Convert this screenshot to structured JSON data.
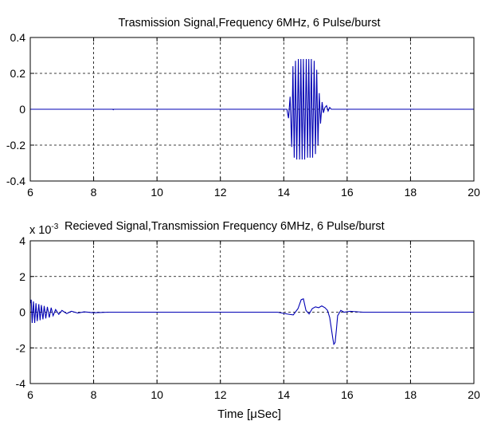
{
  "chart_data": [
    {
      "type": "line",
      "title": "Trasmission Signal,Frequency 6MHz, 6 Pulse/burst",
      "xlabel": "",
      "ylabel": "",
      "xlim": [
        6,
        20
      ],
      "ylim": [
        -0.4,
        0.4
      ],
      "xticks": [
        "6",
        "8",
        "10",
        "12",
        "14",
        "16",
        "18",
        "20"
      ],
      "yticks": [
        "0.4",
        "0.2",
        "0",
        "-0.2",
        "-0.4"
      ],
      "grid": true,
      "color": "#0000b4",
      "series": [
        {
          "x": [
            6.0,
            8.6,
            8.62,
            8.64,
            14.0,
            14.1,
            14.15,
            14.2,
            14.25,
            14.29,
            14.33,
            14.37,
            14.41,
            14.46,
            14.5,
            14.54,
            14.58,
            14.62,
            14.66,
            14.71,
            14.75,
            14.79,
            14.83,
            14.87,
            14.91,
            14.96,
            15.0,
            15.04,
            15.08,
            15.12,
            15.16,
            15.21,
            15.25,
            15.3,
            15.35,
            15.4,
            15.45,
            15.5,
            15.6,
            20.0
          ],
          "y": [
            0.0,
            0.0,
            -0.003,
            0.0,
            0.0,
            0.0,
            -0.05,
            0.07,
            -0.21,
            0.24,
            -0.27,
            0.27,
            -0.28,
            0.28,
            -0.28,
            0.28,
            -0.28,
            0.28,
            -0.28,
            0.28,
            -0.27,
            0.28,
            -0.27,
            0.28,
            -0.27,
            0.27,
            -0.25,
            0.22,
            -0.2,
            0.09,
            -0.08,
            0.04,
            -0.02,
            0.01,
            0.02,
            -0.01,
            0.01,
            0.0,
            0.0,
            0.0
          ]
        }
      ]
    },
    {
      "type": "line",
      "title": "Recieved Signal,Transmission Frequency 6MHz, 6 Pulse/burst",
      "scale_label": "x 10",
      "scale_exp": "-3",
      "xlabel": "Time [μSec]",
      "ylabel": "",
      "xlim": [
        6,
        20
      ],
      "ylim": [
        -4,
        4
      ],
      "xticks": [
        "6",
        "8",
        "10",
        "12",
        "14",
        "16",
        "18",
        "20"
      ],
      "yticks": [
        "4",
        "2",
        "0",
        "-2",
        "-4"
      ],
      "grid": true,
      "color": "#0000b4",
      "series": [
        {
          "x": [
            6.0,
            6.03,
            6.06,
            6.1,
            6.14,
            6.18,
            6.22,
            6.27,
            6.31,
            6.35,
            6.4,
            6.44,
            6.49,
            6.54,
            6.6,
            6.66,
            6.72,
            6.8,
            6.9,
            7.0,
            7.15,
            7.3,
            7.5,
            7.7,
            8.0,
            8.5,
            9.0,
            10.0,
            11.0,
            12.0,
            13.0,
            13.8,
            14.1,
            14.3,
            14.45,
            14.55,
            14.62,
            14.7,
            14.8,
            14.9,
            15.0,
            15.1,
            15.2,
            15.3,
            15.38,
            15.45,
            15.5,
            15.55,
            15.58,
            15.62,
            15.66,
            15.7,
            15.8,
            15.9,
            16.1,
            16.5,
            17.0,
            18.0,
            19.0,
            20.0
          ],
          "y": [
            0.5,
            0.7,
            -0.6,
            0.6,
            -0.6,
            0.5,
            -0.5,
            0.45,
            -0.45,
            0.4,
            -0.4,
            0.35,
            -0.35,
            0.3,
            -0.3,
            0.25,
            -0.2,
            0.15,
            -0.12,
            0.1,
            -0.08,
            0.05,
            -0.05,
            0.02,
            -0.03,
            0.0,
            0.0,
            0.0,
            0.0,
            0.0,
            0.0,
            0.0,
            -0.1,
            -0.15,
            0.2,
            0.7,
            0.75,
            0.1,
            -0.1,
            0.2,
            0.3,
            0.25,
            0.35,
            0.25,
            0.1,
            -0.3,
            -0.9,
            -1.5,
            -1.8,
            -1.7,
            -1.0,
            -0.2,
            0.1,
            0.0,
            0.05,
            0.0,
            0.0,
            0.0,
            0.0,
            0.0
          ]
        }
      ]
    }
  ]
}
